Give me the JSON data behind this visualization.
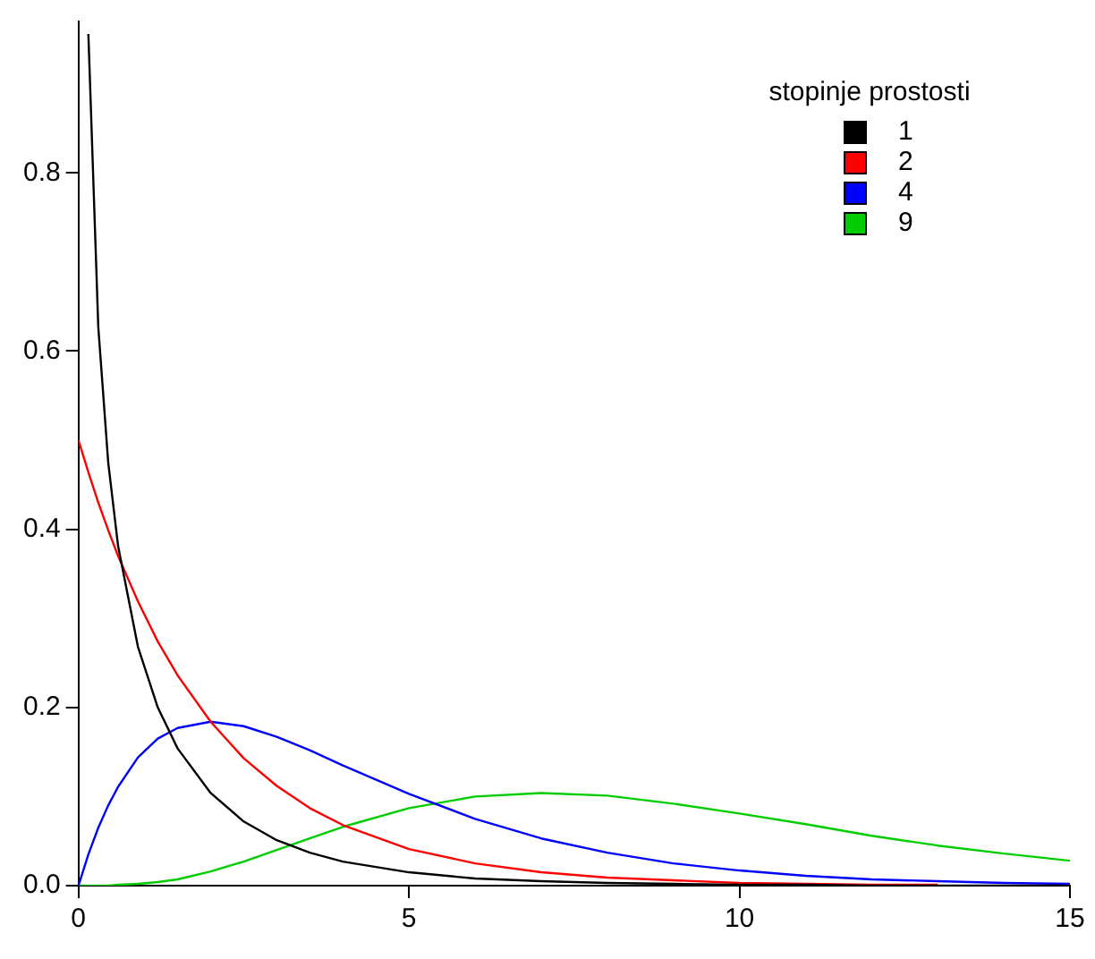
{
  "chart_data": {
    "type": "line",
    "x": [
      0,
      0.15,
      0.3,
      0.45,
      0.6,
      0.9,
      1.2,
      1.5,
      2,
      2.5,
      3,
      3.5,
      4,
      5,
      6,
      7,
      8,
      9,
      10,
      11,
      12,
      13,
      14,
      15
    ],
    "series": [
      {
        "name": "1",
        "color": "#000000",
        "values": [
          null,
          0.956,
          0.627,
          0.475,
          0.381,
          0.268,
          0.2,
          0.154,
          0.104,
          0.072,
          0.051,
          0.037,
          0.027,
          0.015,
          0.008,
          0.005,
          0.003,
          0.002,
          0.001,
          0.001,
          0,
          0,
          0,
          0
        ]
      },
      {
        "name": "2",
        "color": "#ff0000",
        "values": [
          0.5,
          0.464,
          0.43,
          0.399,
          0.37,
          0.319,
          0.274,
          0.236,
          0.184,
          0.143,
          0.112,
          0.087,
          0.068,
          0.041,
          0.025,
          0.015,
          0.009,
          0.006,
          0.003,
          0.002,
          0.001,
          0.001,
          null,
          null
        ]
      },
      {
        "name": "4",
        "color": "#0000ff",
        "values": [
          0,
          0.035,
          0.065,
          0.09,
          0.111,
          0.144,
          0.165,
          0.177,
          0.184,
          0.179,
          0.167,
          0.152,
          0.135,
          0.103,
          0.075,
          0.053,
          0.037,
          0.025,
          0.017,
          0.011,
          0.007,
          0.005,
          0.003,
          0.002
        ]
      },
      {
        "name": "9",
        "color": "#00cd00",
        "values": [
          0,
          0,
          0,
          0,
          0.001,
          0.002,
          0.004,
          0.007,
          0.016,
          0.027,
          0.04,
          0.053,
          0.066,
          0.087,
          0.1,
          0.104,
          0.101,
          0.092,
          0.081,
          0.069,
          0.056,
          0.045,
          0.036,
          0.028
        ]
      }
    ],
    "legend_title": "stopinje prostosti",
    "legend": "top right",
    "xlim": [
      0,
      15
    ],
    "xticks": [
      0,
      5,
      10,
      15
    ],
    "ylim": [
      0,
      0.97
    ],
    "yticks": [
      {
        "value": 0,
        "label": "0.0"
      },
      {
        "value": 0.2,
        "label": "0.2"
      },
      {
        "value": 0.4,
        "label": "0.4"
      },
      {
        "value": 0.6,
        "label": "0.6"
      },
      {
        "value": 0.8,
        "label": "0.8"
      }
    ],
    "grid": false,
    "marker": "none",
    "line_style": "solid"
  }
}
